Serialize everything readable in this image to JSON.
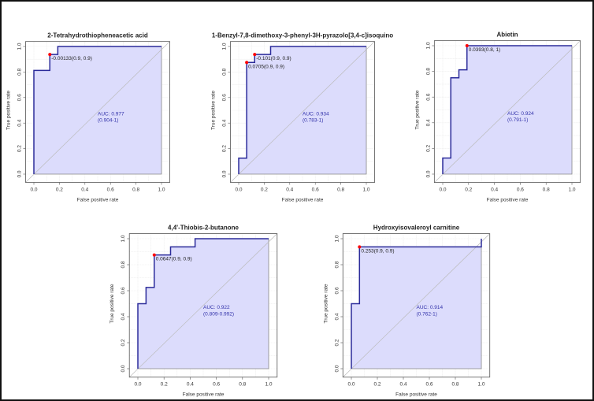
{
  "chart_data": [
    {
      "type": "line",
      "title": "2-Tetrahydrothiopheneacetic acid",
      "xlabel": "False positive rate",
      "ylabel": "True positive rate",
      "xlim": [
        0,
        1
      ],
      "ylim": [
        0,
        1
      ],
      "ticks": [
        "0.0",
        "0.2",
        "0.4",
        "0.6",
        "0.8",
        "1.0"
      ],
      "grid": true,
      "x": [
        0,
        0,
        0.125,
        0.125,
        0.1875,
        0.1875,
        1
      ],
      "y": [
        0,
        0.8125,
        0.8125,
        0.9375,
        0.9375,
        1,
        1
      ],
      "points": [
        {
          "x": 0.125,
          "y": 0.9375,
          "label": "-0.00133(0.9, 0.9)"
        }
      ],
      "auc": "AUC: 0.977",
      "ci": "(0.904-1)"
    },
    {
      "type": "line",
      "title": "1-Benzyl-7,8-dimethoxy-3-phenyl-3H-pyrazolo[3,4-c]isoquino",
      "xlabel": "False positive rate",
      "ylabel": "True positive rate",
      "xlim": [
        0,
        1
      ],
      "ylim": [
        0,
        1
      ],
      "ticks": [
        "0.0",
        "0.2",
        "0.4",
        "0.6",
        "0.8",
        "1.0"
      ],
      "grid": true,
      "x": [
        0,
        0,
        0.0625,
        0.0625,
        0.125,
        0.125,
        0.25,
        0.25,
        1
      ],
      "y": [
        0,
        0.125,
        0.125,
        0.875,
        0.875,
        0.9375,
        0.9375,
        1,
        1
      ],
      "points": [
        {
          "x": 0.125,
          "y": 0.9375,
          "label": "-0.101(0.9, 0.9)"
        },
        {
          "x": 0.0625,
          "y": 0.875,
          "label": "0.0705(0.9, 0.9)"
        }
      ],
      "auc": "AUC: 0.934",
      "ci": "(0.783-1)"
    },
    {
      "type": "line",
      "title": "Abietin",
      "xlabel": "False positive rate",
      "ylabel": "True positive rate",
      "xlim": [
        0,
        1
      ],
      "ylim": [
        0,
        1
      ],
      "ticks": [
        "0.0",
        "0.2",
        "0.4",
        "0.6",
        "0.8",
        "1.0"
      ],
      "grid": true,
      "x": [
        0,
        0,
        0.0625,
        0.0625,
        0.125,
        0.125,
        0.1875,
        0.1875,
        1
      ],
      "y": [
        0,
        0.125,
        0.125,
        0.75,
        0.75,
        0.8125,
        0.8125,
        1,
        1
      ],
      "points": [
        {
          "x": 0.1875,
          "y": 1,
          "label": "0.0393(0.8, 1)"
        }
      ],
      "auc": "AUC: 0.924",
      "ci": "(0.791-1)"
    },
    {
      "type": "line",
      "title": "4,4'-Thiobis-2-butanone",
      "xlabel": "False positive rate",
      "ylabel": "True positive rate",
      "xlim": [
        0,
        1
      ],
      "ylim": [
        0,
        1
      ],
      "ticks": [
        "0.0",
        "0.2",
        "0.4",
        "0.6",
        "0.8",
        "1.0"
      ],
      "grid": true,
      "x": [
        0,
        0,
        0.0625,
        0.0625,
        0.125,
        0.125,
        0.25,
        0.25,
        0.4375,
        0.4375,
        1
      ],
      "y": [
        0,
        0.5,
        0.5,
        0.625,
        0.625,
        0.875,
        0.875,
        0.9375,
        0.9375,
        1,
        1
      ],
      "points": [
        {
          "x": 0.125,
          "y": 0.875,
          "label": "0.0647(0.9, 0.9)"
        }
      ],
      "auc": "AUC: 0.922",
      "ci": "(0.809-0.992)"
    },
    {
      "type": "line",
      "title": "Hydroxyisovaleroyl carnitine",
      "xlabel": "False positive rate",
      "ylabel": "True positive rate",
      "xlim": [
        0,
        1
      ],
      "ylim": [
        0,
        1
      ],
      "ticks": [
        "0.0",
        "0.2",
        "0.4",
        "0.6",
        "0.8",
        "1.0"
      ],
      "grid": true,
      "x": [
        0,
        0,
        0.0625,
        0.0625,
        1,
        1
      ],
      "y": [
        0,
        0.5,
        0.5,
        0.9375,
        0.9375,
        1
      ],
      "points": [
        {
          "x": 0.0625,
          "y": 0.9375,
          "label": "0.253(0.9, 0.9)"
        }
      ],
      "auc": "AUC: 0.914",
      "ci": "(0.762-1)"
    }
  ],
  "colors": {
    "curve": "#2b2b9a",
    "fill": "#dcdcfc",
    "point": "#ff0000",
    "diagonal": "#bbbbbb",
    "auc_text": "#3333aa"
  }
}
